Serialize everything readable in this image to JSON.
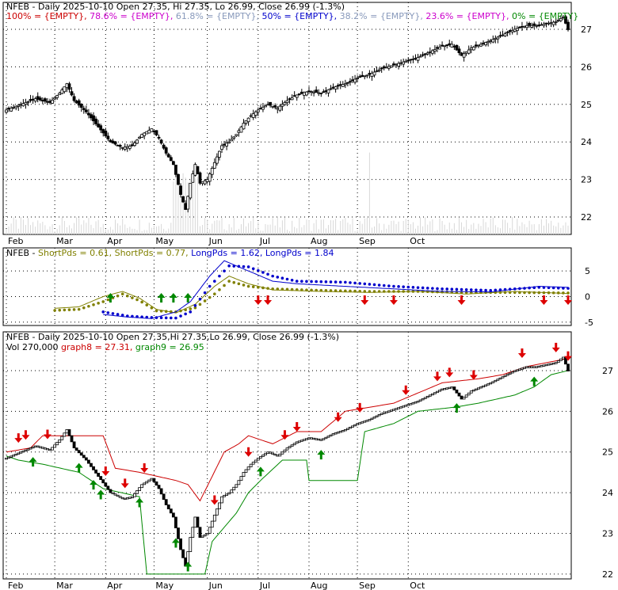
{
  "chart_data": [
    {
      "type": "candlestick",
      "panel": "price",
      "title_parts": [
        {
          "text": "NFEB - Daily 2025-10-10 Open 27.35, Hi 27.35, Lo 26.99, Close 26.99 (-1.3%)",
          "color": "#000000"
        }
      ],
      "fib_legend": [
        {
          "text": "100% = {EMPTY},",
          "color": "#cc0000"
        },
        {
          "text": "78.6% = {EMPTY},",
          "color": "#cc00cc"
        },
        {
          "text": "61.8% = {EMPTY},",
          "color": "#8899bb"
        },
        {
          "text": "50% = {EMPTY},",
          "color": "#0000cc"
        },
        {
          "text": "38.2% = {EMPTY},",
          "color": "#8899bb"
        },
        {
          "text": "23.6% = {EMPTY},",
          "color": "#cc00cc"
        },
        {
          "text": "0% = {EMPTY}",
          "color": "#008800"
        }
      ],
      "x_months": [
        "Feb",
        "Mar",
        "Apr",
        "May",
        "Jun",
        "Jul",
        "Aug",
        "Sep",
        "Oct"
      ],
      "y_ticks": [
        22,
        23,
        24,
        25,
        26,
        27
      ],
      "ylim": [
        21.6,
        27.4
      ],
      "series_path": [
        [
          0,
          24.85
        ],
        [
          8,
          25.05
        ],
        [
          12,
          25.15
        ],
        [
          18,
          25.05
        ],
        [
          22,
          25.3
        ],
        [
          25,
          25.55
        ],
        [
          28,
          25.1
        ],
        [
          33,
          24.8
        ],
        [
          38,
          24.4
        ],
        [
          43,
          24.0
        ],
        [
          48,
          23.85
        ],
        [
          52,
          23.9
        ],
        [
          56,
          24.2
        ],
        [
          60,
          24.35
        ],
        [
          63,
          24.1
        ],
        [
          66,
          23.7
        ],
        [
          69,
          23.4
        ],
        [
          72,
          22.6
        ],
        [
          74,
          22.2
        ],
        [
          76,
          22.9
        ],
        [
          78,
          23.4
        ],
        [
          80,
          22.9
        ],
        [
          83,
          23.0
        ],
        [
          86,
          23.45
        ],
        [
          89,
          23.9
        ],
        [
          92,
          24.0
        ],
        [
          95,
          24.2
        ],
        [
          98,
          24.5
        ],
        [
          101,
          24.7
        ],
        [
          104,
          24.85
        ],
        [
          108,
          25.0
        ],
        [
          112,
          24.9
        ],
        [
          116,
          25.1
        ],
        [
          120,
          25.25
        ],
        [
          125,
          25.35
        ],
        [
          130,
          25.3
        ],
        [
          135,
          25.45
        ],
        [
          140,
          25.55
        ],
        [
          145,
          25.7
        ],
        [
          150,
          25.8
        ],
        [
          155,
          25.95
        ],
        [
          160,
          26.05
        ],
        [
          165,
          26.15
        ],
        [
          170,
          26.25
        ],
        [
          175,
          26.4
        ],
        [
          180,
          26.55
        ],
        [
          184,
          26.6
        ],
        [
          188,
          26.3
        ],
        [
          192,
          26.5
        ],
        [
          196,
          26.6
        ],
        [
          200,
          26.7
        ],
        [
          205,
          26.85
        ],
        [
          210,
          27.0
        ],
        [
          215,
          27.1
        ],
        [
          219,
          27.1
        ],
        [
          223,
          27.15
        ],
        [
          227,
          27.2
        ],
        [
          230,
          27.33
        ],
        [
          232,
          26.99
        ]
      ],
      "n_days": 233,
      "month_day_index": [
        0,
        20,
        40,
        60,
        80,
        101,
        122,
        143,
        164,
        185,
        206,
        227
      ]
    },
    {
      "type": "line",
      "panel": "indicator",
      "legend": [
        {
          "text": "NFEB -",
          "color": "#000000"
        },
        {
          "text": "ShortPds = 0.61,",
          "color": "#808000"
        },
        {
          "text": "ShortPds = 0.77,",
          "color": "#808000"
        },
        {
          "text": "LongPds = 1.62,",
          "color": "#0000cc"
        },
        {
          "text": "LongPds = 1.84",
          "color": "#0000cc"
        }
      ],
      "y_ticks": [
        5,
        0,
        -5
      ],
      "ylim": [
        -5.5,
        7.5
      ],
      "series": [
        {
          "name": "ShortPds",
          "color": "#808000",
          "style": "dots",
          "points": [
            [
              20,
              -2.7
            ],
            [
              30,
              -2.5
            ],
            [
              40,
              -1.0
            ],
            [
              48,
              0.5
            ],
            [
              55,
              -0.8
            ],
            [
              62,
              -2.8
            ],
            [
              70,
              -3.0
            ],
            [
              78,
              -2.2
            ],
            [
              86,
              0.5
            ],
            [
              92,
              3.0
            ],
            [
              100,
              2.0
            ],
            [
              110,
              1.5
            ],
            [
              130,
              1.2
            ],
            [
              150,
              1.0
            ],
            [
              170,
              1.0
            ],
            [
              190,
              0.8
            ],
            [
              210,
              0.8
            ],
            [
              232,
              0.7
            ]
          ]
        },
        {
          "name": "ShortPds",
          "color": "#808000",
          "style": "line",
          "points": [
            [
              20,
              -2.3
            ],
            [
              30,
              -2.0
            ],
            [
              40,
              0.0
            ],
            [
              48,
              1.0
            ],
            [
              55,
              -0.3
            ],
            [
              62,
              -2.5
            ],
            [
              70,
              -3.2
            ],
            [
              78,
              -1.5
            ],
            [
              86,
              2.0
            ],
            [
              92,
              4.0
            ],
            [
              100,
              2.5
            ],
            [
              110,
              1.3
            ],
            [
              130,
              1.0
            ],
            [
              150,
              0.8
            ],
            [
              170,
              1.0
            ],
            [
              190,
              0.5
            ],
            [
              210,
              1.0
            ],
            [
              232,
              0.6
            ]
          ]
        },
        {
          "name": "LongPds",
          "color": "#0000cc",
          "style": "dots",
          "points": [
            [
              40,
              -3.0
            ],
            [
              50,
              -3.8
            ],
            [
              60,
              -4.1
            ],
            [
              70,
              -4.2
            ],
            [
              76,
              -3.0
            ],
            [
              84,
              2.0
            ],
            [
              92,
              6.0
            ],
            [
              100,
              5.8
            ],
            [
              110,
              4.0
            ],
            [
              120,
              3.0
            ],
            [
              140,
              2.8
            ],
            [
              160,
              2.0
            ],
            [
              180,
              1.5
            ],
            [
              200,
              1.2
            ],
            [
              220,
              1.8
            ],
            [
              232,
              1.6
            ]
          ]
        },
        {
          "name": "LongPds",
          "color": "#0000cc",
          "style": "line",
          "points": [
            [
              40,
              -3.5
            ],
            [
              50,
              -4.0
            ],
            [
              60,
              -4.3
            ],
            [
              70,
              -3.0
            ],
            [
              76,
              -1.0
            ],
            [
              84,
              4.0
            ],
            [
              90,
              7.0
            ],
            [
              100,
              5.0
            ],
            [
              110,
              3.0
            ],
            [
              120,
              2.5
            ],
            [
              140,
              2.0
            ],
            [
              160,
              1.5
            ],
            [
              180,
              1.0
            ],
            [
              200,
              0.9
            ],
            [
              220,
              2.0
            ],
            [
              232,
              1.8
            ]
          ]
        }
      ],
      "up_arrows": [
        43,
        64,
        69,
        75
      ],
      "down_arrows": [
        104,
        108,
        148,
        160,
        188,
        222,
        233
      ]
    },
    {
      "type": "step",
      "panel": "lower",
      "title_parts": [
        {
          "text": "NFEB - Daily 2025-10-10 Open 27.35,Hi 27.35,Lo 26.99, Close 26.99 (-1.3%)",
          "color": "#000000"
        }
      ],
      "legend": [
        {
          "text": "Vol 270,000",
          "color": "#000000"
        },
        {
          "text": "graph8 = 27.31,",
          "color": "#cc0000"
        },
        {
          "text": "graph9 = 26.95",
          "color": "#008800"
        }
      ],
      "y_ticks": [
        22,
        23,
        24,
        25,
        26,
        27
      ],
      "ylim": [
        21.9,
        27.7
      ],
      "graph8": {
        "color": "#cc0000",
        "points": [
          [
            0,
            25.0
          ],
          [
            10,
            25.1
          ],
          [
            15,
            25.4
          ],
          [
            40,
            25.4
          ],
          [
            45,
            24.6
          ],
          [
            55,
            24.5
          ],
          [
            70,
            24.3
          ],
          [
            75,
            24.2
          ],
          [
            80,
            23.8
          ],
          [
            90,
            25.0
          ],
          [
            96,
            25.2
          ],
          [
            100,
            25.4
          ],
          [
            110,
            25.2
          ],
          [
            120,
            25.5
          ],
          [
            130,
            25.5
          ],
          [
            140,
            26.0
          ],
          [
            160,
            26.2
          ],
          [
            180,
            26.7
          ],
          [
            195,
            26.8
          ],
          [
            205,
            26.9
          ],
          [
            215,
            27.1
          ],
          [
            232,
            27.3
          ]
        ]
      },
      "graph9": {
        "color": "#008800",
        "points": [
          [
            0,
            24.9
          ],
          [
            5,
            24.8
          ],
          [
            15,
            24.7
          ],
          [
            30,
            24.5
          ],
          [
            40,
            24.1
          ],
          [
            55,
            23.9
          ],
          [
            58,
            22.0
          ],
          [
            82,
            22.0
          ],
          [
            85,
            22.8
          ],
          [
            95,
            23.5
          ],
          [
            100,
            24.0
          ],
          [
            105,
            24.3
          ],
          [
            114,
            24.8
          ],
          [
            124,
            24.8
          ],
          [
            125,
            24.3
          ],
          [
            145,
            24.3
          ],
          [
            148,
            25.5
          ],
          [
            160,
            25.7
          ],
          [
            170,
            26.0
          ],
          [
            185,
            26.1
          ],
          [
            195,
            26.2
          ],
          [
            210,
            26.4
          ],
          [
            218,
            26.6
          ],
          [
            225,
            26.9
          ],
          [
            232,
            27.0
          ]
        ]
      },
      "down_arrows": [
        5,
        8,
        17,
        41,
        49,
        57,
        86,
        100,
        115,
        120,
        137,
        146,
        165,
        178,
        183,
        193,
        213,
        227,
        233
      ],
      "up_arrows": [
        11,
        30,
        36,
        39,
        55,
        70,
        75,
        105,
        130,
        186,
        218
      ]
    }
  ]
}
